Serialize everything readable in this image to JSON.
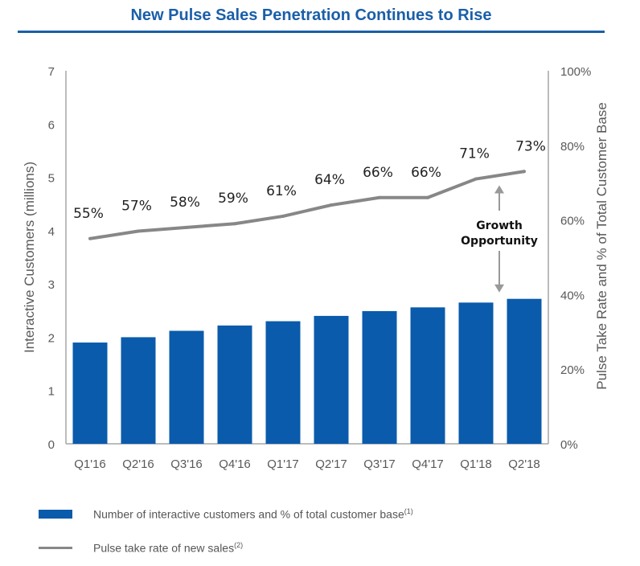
{
  "title": "New Pulse Sales Penetration Continues to Rise",
  "colors": {
    "title": "#1a5fa8",
    "bar": "#0a5bab",
    "line": "#878787",
    "axis": "#a6a6a6",
    "text": "#595959"
  },
  "annotation": {
    "line1": "Growth",
    "line2": "Opportunity"
  },
  "legend": {
    "bar_label": "Number of interactive customers and % of total customer base",
    "bar_note": "(1)",
    "line_label": "Pulse take rate of new sales",
    "line_note": "(2)"
  },
  "chart_data": {
    "type": "bar",
    "categories": [
      "Q1'16",
      "Q2'16",
      "Q3'16",
      "Q4'16",
      "Q1'17",
      "Q2'17",
      "Q3'17",
      "Q4'17",
      "Q1'18",
      "Q2'18"
    ],
    "series": [
      {
        "name": "Number of interactive customers and % of total customer base",
        "type": "bar",
        "axis": "left",
        "values": [
          1.9,
          2.0,
          2.12,
          2.22,
          2.3,
          2.4,
          2.49,
          2.56,
          2.65,
          2.72
        ]
      },
      {
        "name": "Pulse take rate of new sales",
        "type": "line",
        "axis": "right",
        "values": [
          55,
          57,
          58,
          59,
          61,
          64,
          66,
          66,
          71,
          73
        ],
        "labels": [
          "55%",
          "57%",
          "58%",
          "59%",
          "61%",
          "64%",
          "66%",
          "66%",
          "71%",
          "73%"
        ]
      }
    ],
    "ylabel": "Interactive Customers (millions)",
    "ylim": [
      0,
      7
    ],
    "yticks": [
      "0",
      "1",
      "2",
      "3",
      "4",
      "5",
      "6",
      "7"
    ],
    "y2label": "Pulse Take Rate and % of Total Customer Base",
    "y2lim": [
      0,
      100
    ],
    "y2ticks": [
      "0%",
      "20%",
      "40%",
      "60%",
      "80%",
      "100%"
    ],
    "legend_position": "bottom",
    "grid": false
  }
}
